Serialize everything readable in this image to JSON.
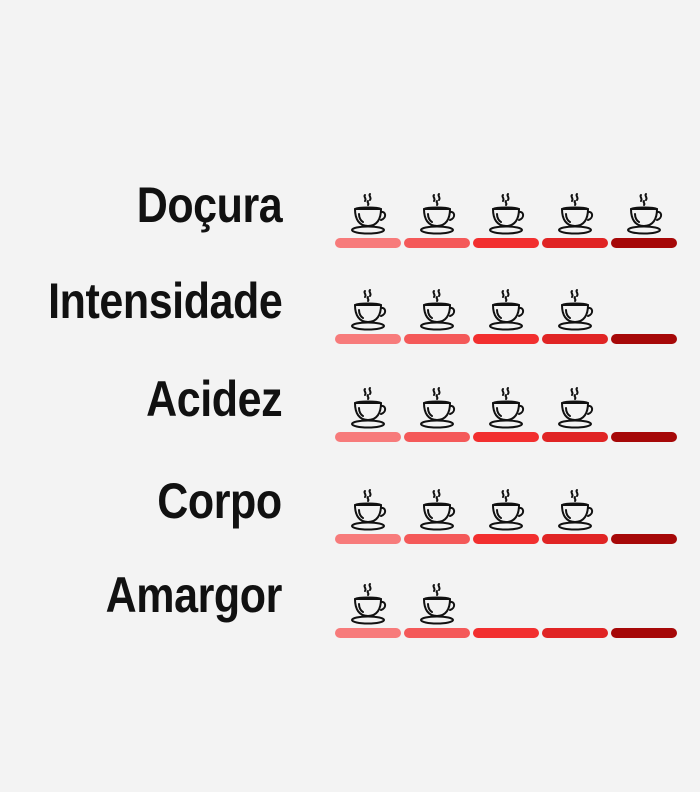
{
  "scale_max": 5,
  "segment_colors": [
    "#f77b7b",
    "#f45959",
    "#f22f2f",
    "#e02424",
    "#a60808"
  ],
  "icon": "coffee-cup-icon",
  "attributes": [
    {
      "label": "Doçura",
      "rating": 5
    },
    {
      "label": "Intensidade",
      "rating": 4
    },
    {
      "label": "Acidez",
      "rating": 4
    },
    {
      "label": "Corpo",
      "rating": 4
    },
    {
      "label": "Amargor",
      "rating": 2
    }
  ]
}
